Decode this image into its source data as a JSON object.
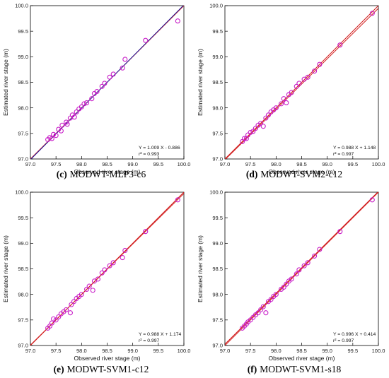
{
  "chart_data": [
    {
      "type": "scatter",
      "caption_letter": "(c)",
      "caption_text": "MODWT-MLP3-c6",
      "xlabel": "Observed river stage (m)",
      "ylabel": "Estimated river stage (m)",
      "xlim": [
        97.0,
        100.0
      ],
      "ylim": [
        97.0,
        100.0
      ],
      "xticks": [
        "97.0",
        "97.5",
        "98.0",
        "98.5",
        "99.0",
        "99.5",
        "100.0"
      ],
      "yticks": [
        "97.0",
        "97.5",
        "98.0",
        "98.5",
        "99.0",
        "99.5",
        "100.0"
      ],
      "equation": "Y = 1.009 X - 0.886",
      "r2": "r² = 0.993",
      "fit": {
        "slope": 1.009,
        "intercept": -0.886,
        "color": "#1a1aa0"
      },
      "identity_color": "#d21e1e",
      "marker_color": "#c81ec8",
      "points": [
        [
          97.34,
          97.38
        ],
        [
          97.38,
          97.42
        ],
        [
          97.42,
          97.4
        ],
        [
          97.45,
          97.48
        ],
        [
          97.5,
          97.46
        ],
        [
          97.55,
          97.58
        ],
        [
          97.6,
          97.55
        ],
        [
          97.62,
          97.66
        ],
        [
          97.7,
          97.72
        ],
        [
          97.72,
          97.68
        ],
        [
          97.78,
          97.8
        ],
        [
          97.82,
          97.86
        ],
        [
          97.86,
          97.82
        ],
        [
          97.9,
          97.92
        ],
        [
          97.95,
          97.98
        ],
        [
          98.0,
          98.02
        ],
        [
          98.05,
          98.08
        ],
        [
          98.1,
          98.1
        ],
        [
          98.2,
          98.18
        ],
        [
          98.25,
          98.28
        ],
        [
          98.3,
          98.32
        ],
        [
          98.4,
          98.42
        ],
        [
          98.45,
          98.48
        ],
        [
          98.55,
          98.6
        ],
        [
          98.62,
          98.66
        ],
        [
          98.8,
          98.78
        ],
        [
          98.85,
          98.95
        ],
        [
          99.25,
          99.32
        ],
        [
          99.88,
          99.7
        ]
      ]
    },
    {
      "type": "scatter",
      "caption_letter": "(d)",
      "caption_text": "MODWT-SVM2-c12",
      "xlabel": "Observed river stage (m)",
      "ylabel": "Estimated river stage (m)",
      "xlim": [
        97.0,
        100.0
      ],
      "ylim": [
        97.0,
        100.0
      ],
      "xticks": [
        "97.0",
        "97.5",
        "98.0",
        "98.5",
        "99.0",
        "99.5",
        "100.0"
      ],
      "yticks": [
        "97.0",
        "97.5",
        "98.0",
        "98.5",
        "99.0",
        "99.5",
        "100.0"
      ],
      "equation": "Y = 0.988 X + 1.148",
      "r2": "r² = 0.997",
      "fit": {
        "slope": 0.988,
        "intercept": 1.148,
        "color": "#d21e1e"
      },
      "identity_color": "#d21e1e",
      "marker_color": "#c81ec8",
      "points": [
        [
          97.34,
          97.34
        ],
        [
          97.38,
          97.4
        ],
        [
          97.42,
          97.4
        ],
        [
          97.45,
          97.47
        ],
        [
          97.5,
          97.52
        ],
        [
          97.55,
          97.54
        ],
        [
          97.6,
          97.6
        ],
        [
          97.65,
          97.66
        ],
        [
          97.7,
          97.7
        ],
        [
          97.75,
          97.64
        ],
        [
          97.8,
          97.8
        ],
        [
          97.85,
          97.86
        ],
        [
          97.9,
          97.92
        ],
        [
          97.95,
          97.96
        ],
        [
          98.0,
          98.0
        ],
        [
          98.1,
          98.08
        ],
        [
          98.15,
          98.18
        ],
        [
          98.2,
          98.1
        ],
        [
          98.25,
          98.26
        ],
        [
          98.3,
          98.3
        ],
        [
          98.4,
          98.42
        ],
        [
          98.45,
          98.48
        ],
        [
          98.55,
          98.56
        ],
        [
          98.62,
          98.6
        ],
        [
          98.75,
          98.72
        ],
        [
          98.85,
          98.85
        ],
        [
          99.25,
          99.23
        ],
        [
          99.88,
          99.85
        ]
      ]
    },
    {
      "type": "scatter",
      "caption_letter": "(e)",
      "caption_text": "MODWT-SVM1-c12",
      "xlabel": "Observed river stage (m)",
      "ylabel": "Estimated river stage (m)",
      "xlim": [
        97.0,
        100.0
      ],
      "ylim": [
        97.0,
        100.0
      ],
      "xticks": [
        "97.0",
        "97.5",
        "98.0",
        "98.5",
        "99.0",
        "99.5",
        "100.0"
      ],
      "yticks": [
        "97.0",
        "97.5",
        "98.0",
        "98.5",
        "99.0",
        "99.5",
        "100.0"
      ],
      "equation": "Y = 0.988 X + 1.174",
      "r2": "r² = 0.997",
      "fit": {
        "slope": 0.988,
        "intercept": 1.174,
        "color": "#d21e1e"
      },
      "identity_color": "#d21e1e",
      "marker_color": "#c81ec8",
      "points": [
        [
          97.34,
          97.34
        ],
        [
          97.38,
          97.38
        ],
        [
          97.42,
          97.44
        ],
        [
          97.45,
          97.52
        ],
        [
          97.5,
          97.5
        ],
        [
          97.55,
          97.56
        ],
        [
          97.6,
          97.62
        ],
        [
          97.65,
          97.66
        ],
        [
          97.7,
          97.7
        ],
        [
          97.78,
          97.64
        ],
        [
          97.8,
          97.8
        ],
        [
          97.85,
          97.86
        ],
        [
          97.9,
          97.92
        ],
        [
          97.95,
          97.96
        ],
        [
          98.0,
          98.0
        ],
        [
          98.1,
          98.1
        ],
        [
          98.15,
          98.16
        ],
        [
          98.22,
          98.08
        ],
        [
          98.25,
          98.26
        ],
        [
          98.32,
          98.3
        ],
        [
          98.4,
          98.42
        ],
        [
          98.45,
          98.48
        ],
        [
          98.55,
          98.56
        ],
        [
          98.62,
          98.62
        ],
        [
          98.8,
          98.72
        ],
        [
          98.85,
          98.86
        ],
        [
          99.25,
          99.23
        ],
        [
          99.88,
          99.85
        ]
      ]
    },
    {
      "type": "scatter",
      "caption_letter": "(f)",
      "caption_text": "MODWT-SVM1-s18",
      "xlabel": "Observed river stage (m)",
      "ylabel": "Estimated river stage (m)",
      "xlim": [
        97.0,
        100.0
      ],
      "ylim": [
        97.0,
        100.0
      ],
      "xticks": [
        "97.0",
        "97.5",
        "98.0",
        "98.5",
        "99.0",
        "99.5",
        "100.0"
      ],
      "yticks": [
        "97.0",
        "97.5",
        "98.0",
        "98.5",
        "99.0",
        "99.5",
        "100.0"
      ],
      "equation": "Y = 0.996 X + 0.414",
      "r2": "r² = 0.997",
      "fit": {
        "slope": 0.996,
        "intercept": 0.414,
        "color": "#d21e1e"
      },
      "identity_color": "#d21e1e",
      "marker_color": "#c81ec8",
      "points": [
        [
          97.34,
          97.34
        ],
        [
          97.38,
          97.38
        ],
        [
          97.42,
          97.42
        ],
        [
          97.45,
          97.46
        ],
        [
          97.5,
          97.5
        ],
        [
          97.55,
          97.55
        ],
        [
          97.6,
          97.6
        ],
        [
          97.65,
          97.64
        ],
        [
          97.7,
          97.7
        ],
        [
          97.75,
          97.76
        ],
        [
          97.8,
          97.64
        ],
        [
          97.85,
          97.86
        ],
        [
          97.9,
          97.9
        ],
        [
          97.95,
          97.96
        ],
        [
          98.0,
          98.0
        ],
        [
          98.1,
          98.1
        ],
        [
          98.15,
          98.14
        ],
        [
          98.2,
          98.2
        ],
        [
          98.25,
          98.26
        ],
        [
          98.3,
          98.3
        ],
        [
          98.4,
          98.4
        ],
        [
          98.45,
          98.48
        ],
        [
          98.55,
          98.56
        ],
        [
          98.62,
          98.62
        ],
        [
          98.75,
          98.75
        ],
        [
          98.85,
          98.88
        ],
        [
          99.25,
          99.23
        ],
        [
          99.88,
          99.85
        ]
      ]
    }
  ]
}
